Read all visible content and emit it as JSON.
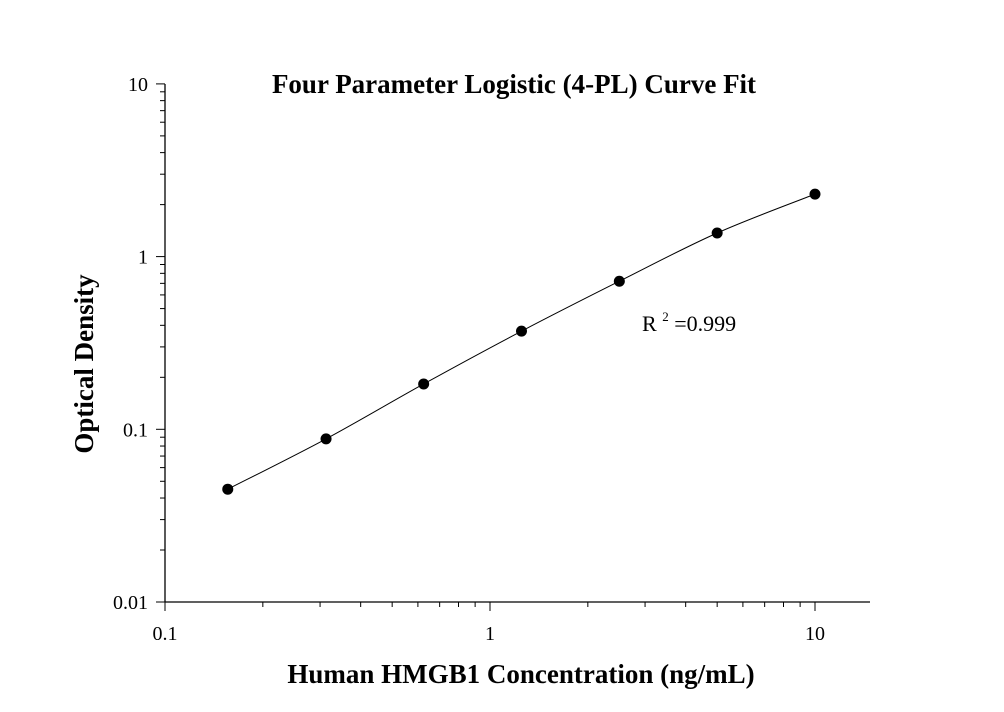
{
  "chart_data": {
    "type": "scatter",
    "title": "Four Parameter Logistic (4-PL) Curve Fit",
    "xlabel": "Human HMGB1 Concentration (ng/mL)",
    "ylabel": "Optical Density",
    "x_scale": "log",
    "y_scale": "log",
    "xlim": [
      0.1,
      15
    ],
    "ylim": [
      0.01,
      10
    ],
    "x_ticks": [
      {
        "value": 0.1,
        "label": "0.1"
      },
      {
        "value": 1,
        "label": "1"
      },
      {
        "value": 10,
        "label": "10"
      }
    ],
    "y_ticks": [
      {
        "value": 0.01,
        "label": "0.01"
      },
      {
        "value": 0.1,
        "label": "0.1"
      },
      {
        "value": 1,
        "label": "1"
      },
      {
        "value": 10,
        "label": "10"
      }
    ],
    "grid": false,
    "series": [
      {
        "x": [
          0.156,
          0.313,
          0.625,
          1.25,
          2.5,
          5,
          10
        ],
        "y": [
          0.045,
          0.088,
          0.183,
          0.37,
          0.72,
          1.37,
          2.3
        ],
        "color": "#000000"
      }
    ],
    "fit_curve": {
      "model": "4PL",
      "color": "#000000"
    },
    "annotation": {
      "text_base": "R",
      "text_sup": "2",
      "text_rest": "=0.999"
    }
  }
}
